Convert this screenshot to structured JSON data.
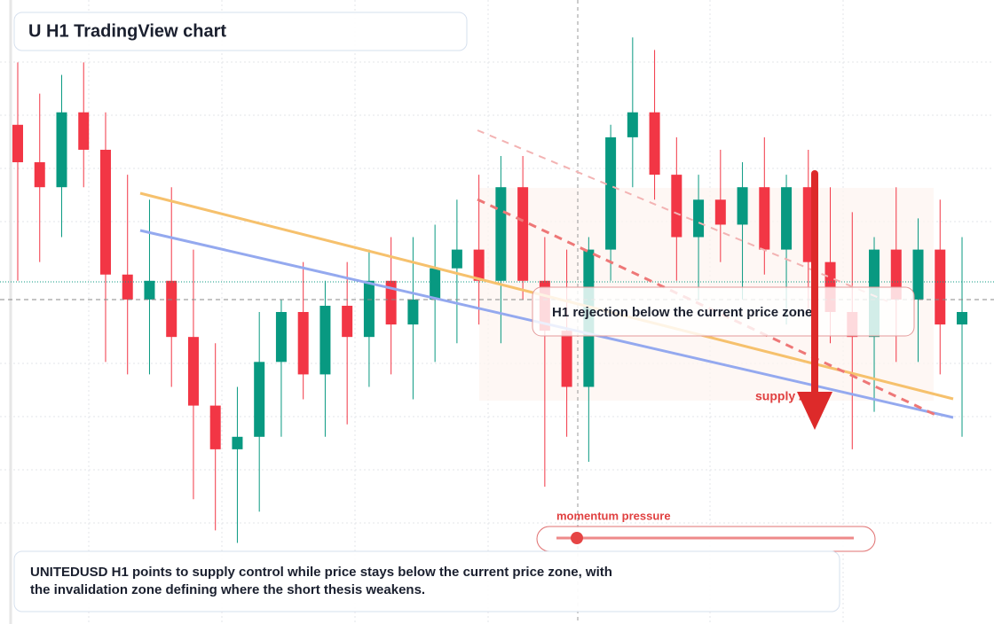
{
  "chart_data": {
    "type": "candlestick",
    "title": "U H1 TradingView chart",
    "annotation": "H1 rejection below the current price zone",
    "zone_label": "supply zone",
    "indicator_label": "momentum pressure",
    "caption": "UNITEDUSD H1 points to supply control while price stays below the current price zone, with the invalidation zone defining where the short thesis weakens.",
    "up_color": "#089981",
    "down_color": "#f23645",
    "ylim": [
      0,
      100
    ],
    "open": [
      80,
      74,
      70,
      82,
      76,
      56,
      52,
      55,
      46,
      35,
      28,
      30,
      42,
      50,
      40,
      51,
      46,
      55,
      48,
      52,
      57,
      60,
      55,
      70,
      55,
      47,
      38,
      60,
      78,
      82,
      72,
      62,
      68,
      64,
      70,
      60,
      70,
      58,
      50,
      46,
      60,
      52,
      60,
      48
    ],
    "high": [
      90,
      85,
      88,
      90,
      82,
      72,
      68,
      70,
      60,
      45,
      38,
      50,
      52,
      58,
      55,
      58,
      60,
      62,
      62,
      64,
      68,
      72,
      75,
      75,
      62,
      60,
      62,
      80,
      94,
      92,
      78,
      72,
      76,
      74,
      78,
      72,
      76,
      70,
      66,
      62,
      70,
      65,
      68,
      62
    ],
    "low": [
      55,
      58,
      62,
      70,
      42,
      40,
      40,
      38,
      20,
      15,
      13,
      18,
      30,
      36,
      30,
      32,
      38,
      40,
      36,
      42,
      45,
      48,
      45,
      52,
      22,
      30,
      26,
      55,
      70,
      68,
      55,
      52,
      58,
      52,
      56,
      48,
      50,
      45,
      28,
      34,
      42,
      42,
      40,
      30
    ],
    "close": [
      74,
      70,
      82,
      76,
      56,
      52,
      55,
      46,
      35,
      28,
      30,
      42,
      50,
      40,
      51,
      46,
      55,
      48,
      52,
      57,
      60,
      55,
      70,
      55,
      47,
      38,
      60,
      78,
      82,
      72,
      62,
      68,
      64,
      70,
      60,
      70,
      58,
      50,
      46,
      60,
      52,
      60,
      48,
      50
    ]
  }
}
